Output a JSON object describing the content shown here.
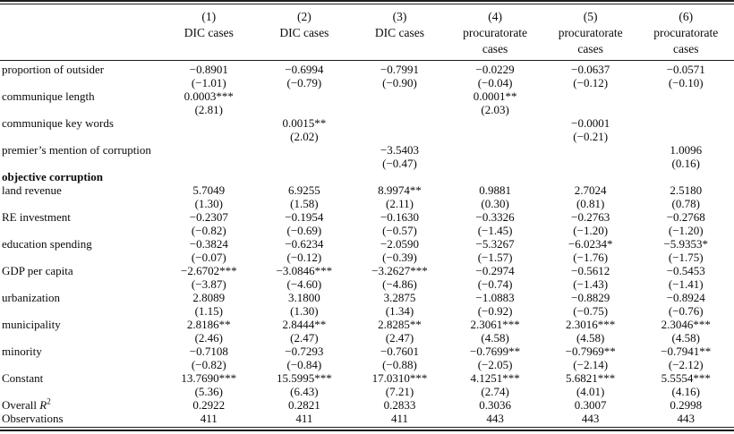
{
  "table": {
    "columns": [
      {
        "num": "(1)",
        "line1": "DIC cases",
        "line2": ""
      },
      {
        "num": "(2)",
        "line1": "DIC cases",
        "line2": ""
      },
      {
        "num": "(3)",
        "line1": "DIC cases",
        "line2": ""
      },
      {
        "num": "(4)",
        "line1": "procuratorate",
        "line2": "cases"
      },
      {
        "num": "(5)",
        "line1": "procuratorate",
        "line2": "cases"
      },
      {
        "num": "(6)",
        "line1": "procuratorate",
        "line2": "cases"
      }
    ],
    "rows": [
      {
        "label": "proportion of outsider",
        "coefs": [
          "−0.8901",
          "−0.6994",
          "−0.7991",
          "−0.0229",
          "−0.0637",
          "−0.0571"
        ],
        "tstats": [
          "(−1.01)",
          "(−0.79)",
          "(−0.90)",
          "(−0.04)",
          "(−0.12)",
          "(−0.10)"
        ]
      },
      {
        "label": "communique length",
        "coefs": [
          "0.0003***",
          "",
          "",
          "0.0001**",
          "",
          ""
        ],
        "tstats": [
          "(2.81)",
          "",
          "",
          "(2.03)",
          "",
          ""
        ]
      },
      {
        "label": "communique key words",
        "coefs": [
          "",
          "0.0015**",
          "",
          "",
          "−0.0001",
          ""
        ],
        "tstats": [
          "",
          "(2.02)",
          "",
          "",
          "(−0.21)",
          ""
        ]
      },
      {
        "label": "premier’s mention of corruption",
        "coefs": [
          "",
          "",
          "−3.5403",
          "",
          "",
          "1.0096"
        ],
        "tstats": [
          "",
          "",
          "(−0.47)",
          "",
          "",
          "(0.16)"
        ]
      },
      {
        "label": "objective corruption",
        "bold": true
      },
      {
        "label": "land revenue",
        "coefs": [
          "5.7049",
          "6.9255",
          "8.9974**",
          "0.9881",
          "2.7024",
          "2.5180"
        ],
        "tstats": [
          "(1.30)",
          "(1.58)",
          "(2.11)",
          "(0.30)",
          "(0.81)",
          "(0.78)"
        ]
      },
      {
        "label": "RE investment",
        "coefs": [
          "−0.2307",
          "−0.1954",
          "−0.1630",
          "−0.3326",
          "−0.2763",
          "−0.2768"
        ],
        "tstats": [
          "(−0.82)",
          "(−0.69)",
          "(−0.57)",
          "(−1.45)",
          "(−1.20)",
          "(−1.20)"
        ]
      },
      {
        "label": "education spending",
        "coefs": [
          "−0.3824",
          "−0.6234",
          "−2.0590",
          "−5.3267",
          "−6.0234*",
          "−5.9353*"
        ],
        "tstats": [
          "(−0.07)",
          "(−0.12)",
          "(−0.39)",
          "(−1.57)",
          "(−1.76)",
          "(−1.75)"
        ]
      },
      {
        "label": "GDP per capita",
        "coefs": [
          "−2.6702***",
          "−3.0846***",
          "−3.2627***",
          "−0.2974",
          "−0.5612",
          "−0.5453"
        ],
        "tstats": [
          "(−3.87)",
          "(−4.60)",
          "(−4.86)",
          "(−0.74)",
          "(−1.43)",
          "(−1.41)"
        ]
      },
      {
        "label": "urbanization",
        "coefs": [
          "2.8089",
          "3.1800",
          "3.2875",
          "−1.0883",
          "−0.8829",
          "−0.8924"
        ],
        "tstats": [
          "(1.15)",
          "(1.30)",
          "(1.34)",
          "(−0.92)",
          "(−0.75)",
          "(−0.76)"
        ]
      },
      {
        "label": "municipality",
        "coefs": [
          "2.8186**",
          "2.8444**",
          "2.8285**",
          "2.3061***",
          "2.3016***",
          "2.3046***"
        ],
        "tstats": [
          "(2.46)",
          "(2.47)",
          "(2.47)",
          "(4.58)",
          "(4.58)",
          "(4.58)"
        ]
      },
      {
        "label": "minority",
        "coefs": [
          "−0.7108",
          "−0.7293",
          "−0.7601",
          "−0.7699**",
          "−0.7969**",
          "−0.7941**"
        ],
        "tstats": [
          "(−0.82)",
          "(−0.84)",
          "(−0.88)",
          "(−2.05)",
          "(−2.14)",
          "(−2.12)"
        ]
      },
      {
        "label": "Constant",
        "coefs": [
          "13.7690***",
          "15.5995***",
          "17.0310***",
          "4.1251***",
          "5.6821***",
          "5.5554***"
        ],
        "tstats": [
          "(5.36)",
          "(6.43)",
          "(7.21)",
          "(2.74)",
          "(4.01)",
          "(4.16)"
        ]
      },
      {
        "label": "Overall ",
        "label_it": "R",
        "label_sup": "2",
        "coefs": [
          "0.2922",
          "0.2821",
          "0.2833",
          "0.3036",
          "0.3007",
          "0.2998"
        ]
      },
      {
        "label": "Observations",
        "coefs": [
          "411",
          "411",
          "411",
          "443",
          "443",
          "443"
        ]
      }
    ]
  }
}
